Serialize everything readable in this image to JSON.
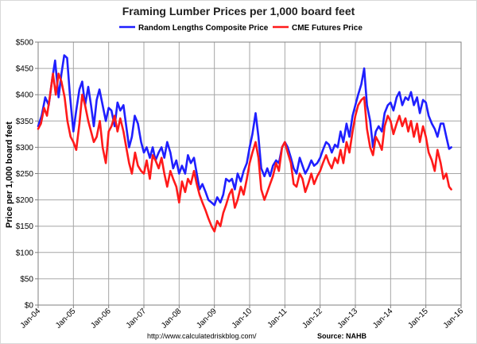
{
  "chart_data": {
    "type": "line",
    "title": "Framing Lumber Prices per 1,000 board feet",
    "xlabel": "",
    "ylabel": "Price per 1,000 board feet",
    "ylim": [
      0,
      500
    ],
    "y_ticks": [
      "$0",
      "$50",
      "$100",
      "$150",
      "$200",
      "$250",
      "$300",
      "$350",
      "$400",
      "$450",
      "$500"
    ],
    "x_ticks": [
      "Jan-04",
      "Jan-05",
      "Jan-06",
      "Jan-07",
      "Jan-08",
      "Jan-09",
      "Jan-10",
      "Jan-11",
      "Jan-12",
      "Jan-13",
      "Jan-14",
      "Jan-15",
      "Jan-16"
    ],
    "xlim": [
      2004.0,
      2016.0
    ],
    "grid": true,
    "legend_position": "top",
    "series": [
      {
        "name": "Random Lengths Composite Price",
        "color": "#1f1fff",
        "points": [
          [
            2004.0,
            340
          ],
          [
            2004.1,
            360
          ],
          [
            2004.2,
            395
          ],
          [
            2004.3,
            380
          ],
          [
            2004.4,
            430
          ],
          [
            2004.48,
            465
          ],
          [
            2004.58,
            395
          ],
          [
            2004.66,
            440
          ],
          [
            2004.74,
            475
          ],
          [
            2004.82,
            470
          ],
          [
            2004.9,
            400
          ],
          [
            2005.0,
            330
          ],
          [
            2005.08,
            370
          ],
          [
            2005.17,
            410
          ],
          [
            2005.25,
            425
          ],
          [
            2005.33,
            380
          ],
          [
            2005.42,
            415
          ],
          [
            2005.5,
            380
          ],
          [
            2005.58,
            340
          ],
          [
            2005.66,
            390
          ],
          [
            2005.74,
            410
          ],
          [
            2005.83,
            380
          ],
          [
            2005.92,
            350
          ],
          [
            2006.0,
            375
          ],
          [
            2006.08,
            370
          ],
          [
            2006.17,
            340
          ],
          [
            2006.25,
            385
          ],
          [
            2006.33,
            370
          ],
          [
            2006.42,
            380
          ],
          [
            2006.5,
            340
          ],
          [
            2006.58,
            300
          ],
          [
            2006.66,
            320
          ],
          [
            2006.74,
            360
          ],
          [
            2006.83,
            345
          ],
          [
            2006.92,
            310
          ],
          [
            2007.0,
            290
          ],
          [
            2007.08,
            300
          ],
          [
            2007.17,
            280
          ],
          [
            2007.25,
            300
          ],
          [
            2007.33,
            275
          ],
          [
            2007.42,
            290
          ],
          [
            2007.5,
            300
          ],
          [
            2007.58,
            280
          ],
          [
            2007.66,
            310
          ],
          [
            2007.75,
            290
          ],
          [
            2007.83,
            260
          ],
          [
            2007.92,
            275
          ],
          [
            2008.0,
            250
          ],
          [
            2008.08,
            265
          ],
          [
            2008.17,
            250
          ],
          [
            2008.25,
            285
          ],
          [
            2008.33,
            270
          ],
          [
            2008.42,
            280
          ],
          [
            2008.5,
            250
          ],
          [
            2008.58,
            220
          ],
          [
            2008.66,
            230
          ],
          [
            2008.75,
            215
          ],
          [
            2008.83,
            200
          ],
          [
            2008.92,
            195
          ],
          [
            2009.0,
            190
          ],
          [
            2009.08,
            205
          ],
          [
            2009.17,
            195
          ],
          [
            2009.25,
            210
          ],
          [
            2009.33,
            240
          ],
          [
            2009.42,
            235
          ],
          [
            2009.5,
            240
          ],
          [
            2009.58,
            220
          ],
          [
            2009.66,
            250
          ],
          [
            2009.75,
            235
          ],
          [
            2009.83,
            255
          ],
          [
            2009.92,
            270
          ],
          [
            2010.0,
            300
          ],
          [
            2010.08,
            325
          ],
          [
            2010.17,
            365
          ],
          [
            2010.25,
            320
          ],
          [
            2010.33,
            260
          ],
          [
            2010.42,
            245
          ],
          [
            2010.5,
            260
          ],
          [
            2010.58,
            245
          ],
          [
            2010.66,
            265
          ],
          [
            2010.75,
            275
          ],
          [
            2010.83,
            270
          ],
          [
            2010.92,
            300
          ],
          [
            2011.0,
            310
          ],
          [
            2011.08,
            300
          ],
          [
            2011.17,
            280
          ],
          [
            2011.25,
            260
          ],
          [
            2011.33,
            250
          ],
          [
            2011.42,
            280
          ],
          [
            2011.5,
            265
          ],
          [
            2011.58,
            250
          ],
          [
            2011.66,
            260
          ],
          [
            2011.75,
            275
          ],
          [
            2011.83,
            265
          ],
          [
            2011.92,
            270
          ],
          [
            2012.0,
            280
          ],
          [
            2012.08,
            295
          ],
          [
            2012.17,
            310
          ],
          [
            2012.25,
            305
          ],
          [
            2012.33,
            290
          ],
          [
            2012.42,
            305
          ],
          [
            2012.5,
            300
          ],
          [
            2012.58,
            330
          ],
          [
            2012.66,
            310
          ],
          [
            2012.75,
            345
          ],
          [
            2012.83,
            320
          ],
          [
            2012.92,
            360
          ],
          [
            2013.0,
            380
          ],
          [
            2013.08,
            400
          ],
          [
            2013.17,
            420
          ],
          [
            2013.25,
            450
          ],
          [
            2013.33,
            380
          ],
          [
            2013.42,
            350
          ],
          [
            2013.5,
            300
          ],
          [
            2013.58,
            330
          ],
          [
            2013.66,
            340
          ],
          [
            2013.75,
            330
          ],
          [
            2013.83,
            365
          ],
          [
            2013.92,
            380
          ],
          [
            2014.0,
            385
          ],
          [
            2014.08,
            370
          ],
          [
            2014.17,
            395
          ],
          [
            2014.25,
            405
          ],
          [
            2014.33,
            380
          ],
          [
            2014.42,
            395
          ],
          [
            2014.5,
            390
          ],
          [
            2014.58,
            405
          ],
          [
            2014.66,
            380
          ],
          [
            2014.75,
            395
          ],
          [
            2014.83,
            365
          ],
          [
            2014.92,
            390
          ],
          [
            2015.0,
            385
          ],
          [
            2015.08,
            360
          ],
          [
            2015.17,
            345
          ],
          [
            2015.25,
            335
          ],
          [
            2015.33,
            320
          ],
          [
            2015.42,
            345
          ],
          [
            2015.5,
            345
          ],
          [
            2015.58,
            320
          ],
          [
            2015.66,
            297
          ],
          [
            2015.72,
            300
          ]
        ]
      },
      {
        "name": "CME Futures Price",
        "color": "#ff1a1a",
        "points": [
          [
            2004.0,
            335
          ],
          [
            2004.08,
            345
          ],
          [
            2004.17,
            375
          ],
          [
            2004.25,
            360
          ],
          [
            2004.33,
            395
          ],
          [
            2004.42,
            440
          ],
          [
            2004.5,
            400
          ],
          [
            2004.58,
            440
          ],
          [
            2004.66,
            425
          ],
          [
            2004.75,
            395
          ],
          [
            2004.83,
            350
          ],
          [
            2004.92,
            320
          ],
          [
            2005.0,
            310
          ],
          [
            2005.08,
            295
          ],
          [
            2005.17,
            345
          ],
          [
            2005.25,
            400
          ],
          [
            2005.33,
            380
          ],
          [
            2005.42,
            350
          ],
          [
            2005.5,
            330
          ],
          [
            2005.58,
            310
          ],
          [
            2005.66,
            320
          ],
          [
            2005.75,
            350
          ],
          [
            2005.83,
            300
          ],
          [
            2005.92,
            270
          ],
          [
            2006.0,
            330
          ],
          [
            2006.08,
            340
          ],
          [
            2006.17,
            360
          ],
          [
            2006.25,
            330
          ],
          [
            2006.33,
            355
          ],
          [
            2006.42,
            330
          ],
          [
            2006.5,
            300
          ],
          [
            2006.58,
            270
          ],
          [
            2006.66,
            250
          ],
          [
            2006.75,
            290
          ],
          [
            2006.83,
            265
          ],
          [
            2006.92,
            255
          ],
          [
            2007.0,
            250
          ],
          [
            2007.08,
            275
          ],
          [
            2007.17,
            240
          ],
          [
            2007.25,
            285
          ],
          [
            2007.33,
            275
          ],
          [
            2007.42,
            260
          ],
          [
            2007.5,
            280
          ],
          [
            2007.58,
            250
          ],
          [
            2007.66,
            225
          ],
          [
            2007.75,
            255
          ],
          [
            2007.83,
            240
          ],
          [
            2007.92,
            225
          ],
          [
            2008.0,
            195
          ],
          [
            2008.08,
            235
          ],
          [
            2008.17,
            215
          ],
          [
            2008.25,
            240
          ],
          [
            2008.33,
            230
          ],
          [
            2008.42,
            255
          ],
          [
            2008.5,
            230
          ],
          [
            2008.58,
            210
          ],
          [
            2008.66,
            195
          ],
          [
            2008.75,
            180
          ],
          [
            2008.83,
            165
          ],
          [
            2008.92,
            150
          ],
          [
            2009.0,
            140
          ],
          [
            2009.08,
            160
          ],
          [
            2009.17,
            150
          ],
          [
            2009.25,
            175
          ],
          [
            2009.33,
            190
          ],
          [
            2009.42,
            210
          ],
          [
            2009.5,
            220
          ],
          [
            2009.58,
            185
          ],
          [
            2009.66,
            200
          ],
          [
            2009.75,
            225
          ],
          [
            2009.83,
            210
          ],
          [
            2009.92,
            240
          ],
          [
            2010.0,
            270
          ],
          [
            2010.08,
            290
          ],
          [
            2010.17,
            310
          ],
          [
            2010.25,
            280
          ],
          [
            2010.33,
            220
          ],
          [
            2010.42,
            200
          ],
          [
            2010.5,
            215
          ],
          [
            2010.58,
            230
          ],
          [
            2010.66,
            245
          ],
          [
            2010.75,
            270
          ],
          [
            2010.83,
            255
          ],
          [
            2010.92,
            300
          ],
          [
            2011.0,
            310
          ],
          [
            2011.08,
            290
          ],
          [
            2011.17,
            270
          ],
          [
            2011.25,
            230
          ],
          [
            2011.33,
            225
          ],
          [
            2011.42,
            250
          ],
          [
            2011.5,
            240
          ],
          [
            2011.58,
            215
          ],
          [
            2011.66,
            230
          ],
          [
            2011.75,
            250
          ],
          [
            2011.83,
            230
          ],
          [
            2011.92,
            245
          ],
          [
            2012.0,
            255
          ],
          [
            2012.08,
            270
          ],
          [
            2012.17,
            285
          ],
          [
            2012.25,
            270
          ],
          [
            2012.33,
            260
          ],
          [
            2012.42,
            280
          ],
          [
            2012.5,
            270
          ],
          [
            2012.58,
            295
          ],
          [
            2012.66,
            270
          ],
          [
            2012.75,
            310
          ],
          [
            2012.83,
            290
          ],
          [
            2012.92,
            330
          ],
          [
            2013.0,
            360
          ],
          [
            2013.08,
            380
          ],
          [
            2013.17,
            390
          ],
          [
            2013.25,
            395
          ],
          [
            2013.33,
            335
          ],
          [
            2013.42,
            300
          ],
          [
            2013.5,
            285
          ],
          [
            2013.58,
            320
          ],
          [
            2013.66,
            310
          ],
          [
            2013.75,
            295
          ],
          [
            2013.83,
            340
          ],
          [
            2013.92,
            360
          ],
          [
            2014.0,
            350
          ],
          [
            2014.08,
            325
          ],
          [
            2014.17,
            345
          ],
          [
            2014.25,
            360
          ],
          [
            2014.33,
            340
          ],
          [
            2014.42,
            355
          ],
          [
            2014.5,
            330
          ],
          [
            2014.58,
            350
          ],
          [
            2014.66,
            320
          ],
          [
            2014.75,
            345
          ],
          [
            2014.83,
            310
          ],
          [
            2014.92,
            340
          ],
          [
            2015.0,
            320
          ],
          [
            2015.08,
            290
          ],
          [
            2015.17,
            275
          ],
          [
            2015.25,
            255
          ],
          [
            2015.33,
            295
          ],
          [
            2015.42,
            270
          ],
          [
            2015.5,
            240
          ],
          [
            2015.58,
            250
          ],
          [
            2015.66,
            225
          ],
          [
            2015.72,
            220
          ]
        ]
      }
    ],
    "footer": {
      "url": "http://www.calculatedriskblog.com/",
      "source": "Source: NAHB"
    }
  }
}
